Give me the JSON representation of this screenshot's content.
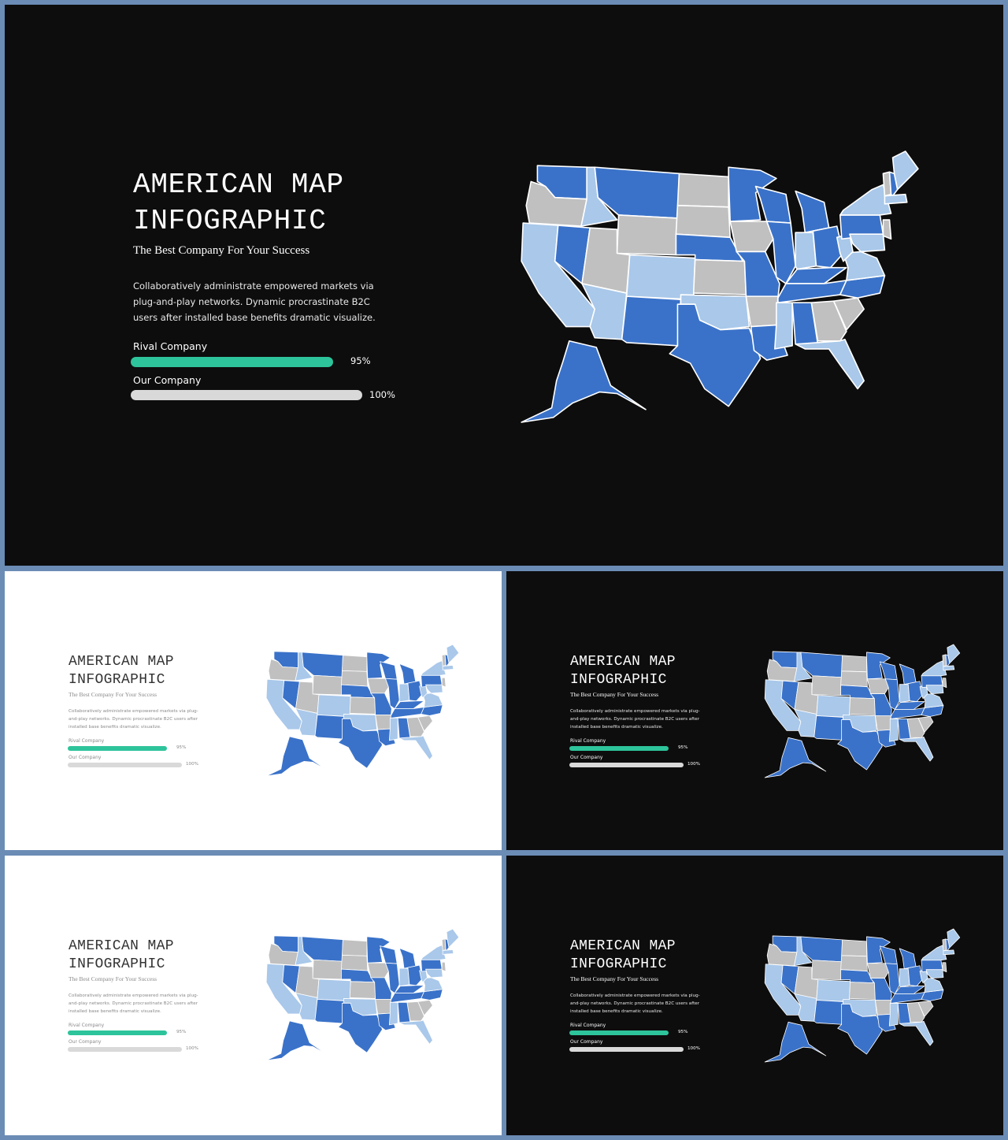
{
  "slide": {
    "title": "AMERICAN MAP\nINFOGRAPHIC",
    "subtitle": "The Best Company For Your Success",
    "body": "Collaboratively administrate empowered  markets via plug-and-play networks. Dynamic procrastinate B2C users after installed base benefits dramatic visualize.",
    "bars": [
      {
        "label": "Rival Company",
        "value_label": "95%",
        "value": 0.95,
        "color": "#2ec49b"
      },
      {
        "label": "Our Company",
        "value_label": "100%",
        "value": 1.0,
        "color": "#d9d9d9"
      }
    ]
  },
  "colors": {
    "frame": "#6b8cb5",
    "dark_bg": "#0d0d0e",
    "light_bg": "#ffffff",
    "map_dark_blue": "#3a72c9",
    "map_light_blue": "#a9c8ea",
    "map_gray": "#c0c0c0"
  },
  "slides": [
    {
      "theme": "dark"
    },
    {
      "theme": "light"
    },
    {
      "theme": "dark"
    },
    {
      "theme": "light"
    },
    {
      "theme": "dark"
    }
  ]
}
